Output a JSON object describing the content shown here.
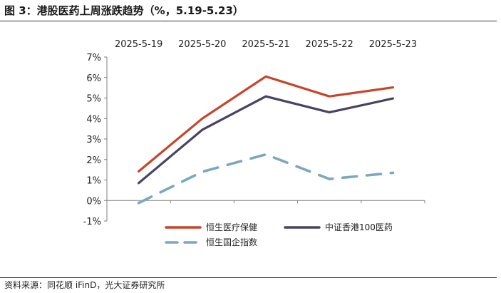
{
  "header": {
    "title": "图 3：港股医药上周涨跌趋势（%，5.19-5.23）"
  },
  "footer": {
    "source": "资料来源：同花顺 iFinD，光大证券研究所"
  },
  "chart_data": {
    "type": "line",
    "title": "港股医药上周涨跌趋势（%，5.19-5.23）",
    "categories": [
      "2025-5-19",
      "2025-5-20",
      "2025-5-21",
      "2025-5-22",
      "2025-5-23"
    ],
    "xaxis_position": "top",
    "ylim": [
      -1,
      7
    ],
    "yticks": [
      -1,
      0,
      1,
      2,
      3,
      4,
      5,
      6,
      7
    ],
    "ytick_labels": [
      "-1%",
      "0%",
      "1%",
      "2%",
      "3%",
      "4%",
      "5%",
      "6%",
      "7%"
    ],
    "grid": false,
    "legend_position": "bottom-right",
    "series": [
      {
        "name": "恒生医疗保健",
        "values": [
          1.42,
          4.0,
          6.05,
          5.08,
          5.52
        ],
        "color": "#c8442b",
        "dash": "solid"
      },
      {
        "name": "中证香港100医药",
        "values": [
          0.85,
          3.45,
          5.08,
          4.3,
          4.98
        ],
        "color": "#4a4263",
        "dash": "solid"
      },
      {
        "name": "恒生国企指数",
        "values": [
          -0.12,
          1.4,
          2.25,
          1.05,
          1.35
        ],
        "color": "#7ba7bf",
        "dash": "dashed"
      }
    ]
  }
}
